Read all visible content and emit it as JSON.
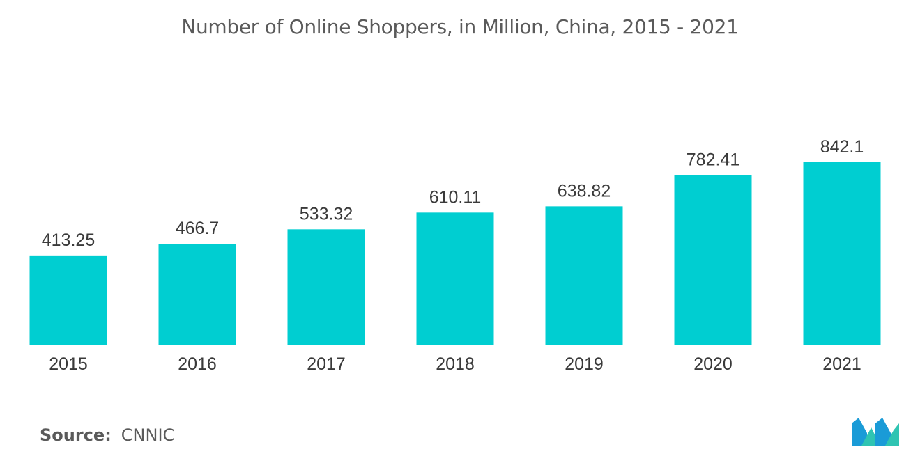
{
  "chart_data": {
    "type": "bar",
    "title": "Number of Online Shoppers, in Million, China, 2015 - 2021",
    "categories": [
      "2015",
      "2016",
      "2017",
      "2018",
      "2019",
      "2020",
      "2021"
    ],
    "values": [
      413.25,
      466.7,
      533.32,
      610.11,
      638.82,
      782.41,
      842.1
    ],
    "value_labels": [
      "413.25",
      "466.7",
      "533.32",
      "610.11",
      "638.82",
      "782.41",
      "842.1"
    ],
    "xlabel": "",
    "ylabel": "",
    "grid": false,
    "legend": "none",
    "bar_color": "#00ced1"
  },
  "source": {
    "label": "Source:",
    "value": "CNNIC"
  },
  "logo": {
    "icon": "mordor-intelligence-logo-icon",
    "colors": [
      "#1a9bd7",
      "#2fc4b2"
    ]
  }
}
